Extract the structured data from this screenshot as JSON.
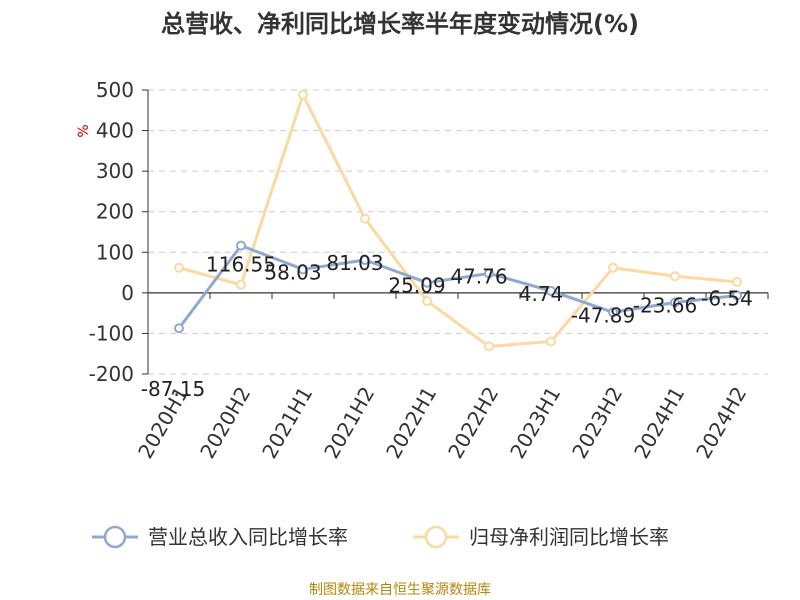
{
  "chart_data": {
    "type": "line",
    "title": "总营收、净利同比增长率半年度变动情况(%)",
    "ylabel": "%",
    "categories": [
      "2020H1",
      "2020H2",
      "2021H1",
      "2021H2",
      "2022H1",
      "2022H2",
      "2023H1",
      "2023H2",
      "2024H1",
      "2024H2"
    ],
    "ylim": [
      -200,
      500
    ],
    "yticks": [
      500,
      400,
      300,
      200,
      100,
      0,
      -100,
      -200
    ],
    "grid": true,
    "legend_position": "bottom",
    "series": [
      {
        "name": "营业总收入同比增长率",
        "color": "#8fa9d3",
        "values": [
          -87.15,
          116.55,
          58.03,
          81.03,
          25.09,
          47.76,
          4.74,
          -47.89,
          -23.66,
          -6.54
        ],
        "labels": [
          "-87.15",
          "116.55",
          "58.03",
          "81.03",
          "25.09",
          "47.76",
          "4.74",
          "-47.89",
          "-23.66",
          "-6.54"
        ]
      },
      {
        "name": "归母净利润同比增长率",
        "color": "#fbd9a0",
        "values": [
          62,
          20,
          488,
          183,
          -20,
          -132,
          -120,
          62,
          41,
          27
        ]
      }
    ],
    "source": "制图数据来自恒生聚源数据库"
  }
}
